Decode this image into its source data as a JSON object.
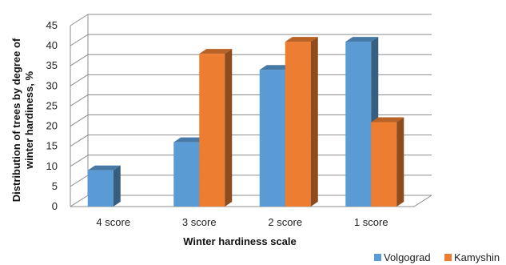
{
  "chart_data": {
    "type": "bar",
    "style": "3d-clustered-column",
    "categories": [
      "4 score",
      "3 score",
      "2 score",
      "1 score"
    ],
    "series": [
      {
        "name": "Volgograd",
        "values": [
          9,
          16,
          34,
          41
        ],
        "color": "#5B9BD5"
      },
      {
        "name": "Kamyshin",
        "values": [
          0,
          38,
          41,
          21
        ],
        "color": "#ED7D31"
      }
    ],
    "title": "",
    "xlabel": "Winter hardiness scale",
    "ylabel_lines": [
      "Distribution of trees by degree of",
      "winter hardiness, %"
    ],
    "ylim": [
      0,
      45
    ],
    "yticks": [
      0,
      5,
      10,
      15,
      20,
      25,
      30,
      35,
      40,
      45
    ],
    "grid": true,
    "legend_position": "bottom-right"
  }
}
